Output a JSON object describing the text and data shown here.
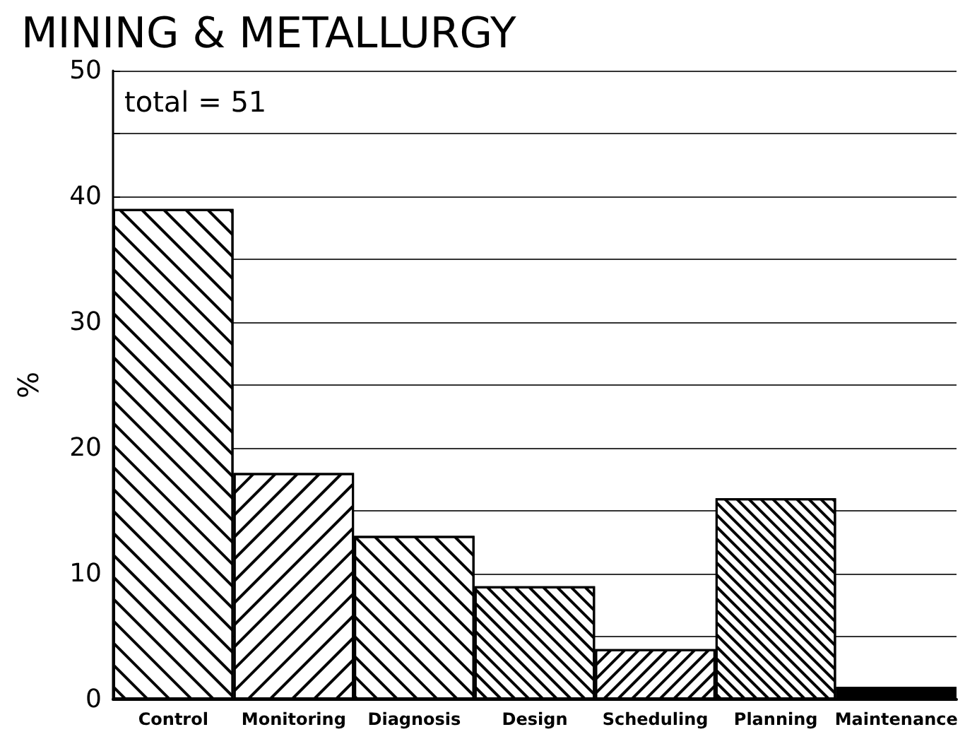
{
  "chart_data": {
    "type": "bar",
    "title": "MINING & METALLURGY",
    "ylabel": "%",
    "annotations": [
      "total = 51"
    ],
    "categories": [
      "Control",
      "Monitoring",
      "Diagnosis",
      "Design",
      "Scheduling",
      "Planning",
      "Maintenance"
    ],
    "values": [
      39,
      18,
      13,
      9,
      4,
      16,
      1
    ],
    "colors": [
      "#ffffff",
      "#ffffff",
      "#ffffff",
      "#ffffff",
      "#ffffff",
      "#ffffff",
      "#000000"
    ],
    "ylim": [
      0,
      50
    ],
    "yticks": [
      0,
      {
        "value": 5,
        "label": null
      },
      10,
      {
        "value": 15,
        "label": null
      },
      20,
      {
        "value": 25,
        "label": null
      },
      30,
      {
        "value": 35,
        "label": null
      },
      40,
      {
        "value": 45,
        "label": null
      },
      50
    ],
    "grid": "y"
  }
}
